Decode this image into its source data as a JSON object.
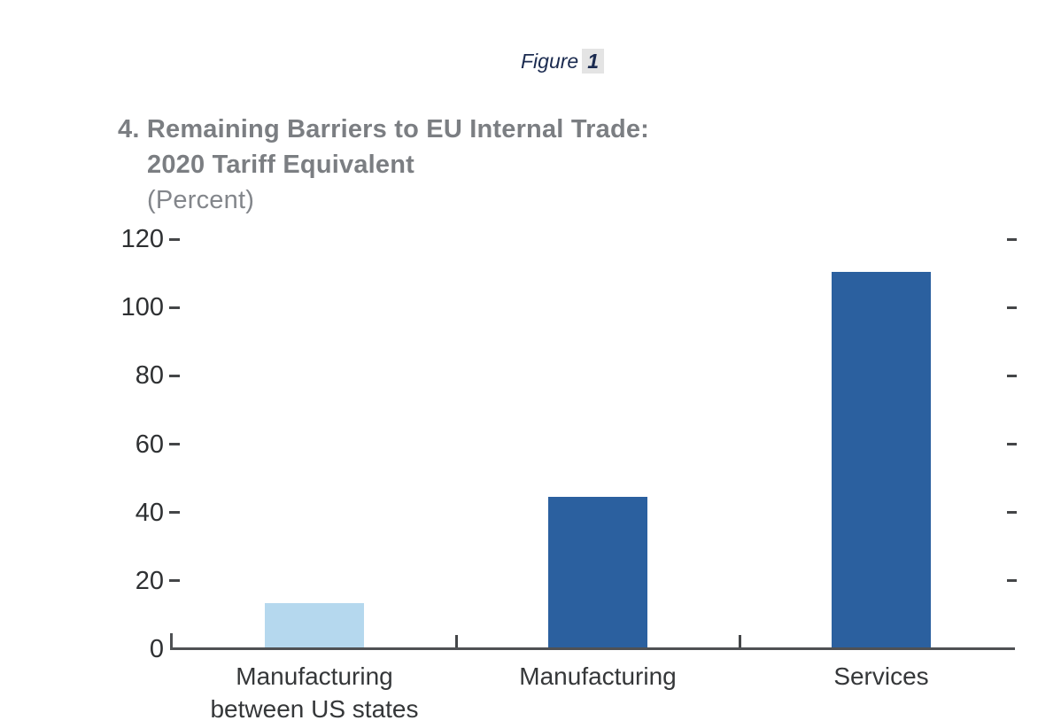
{
  "figure": {
    "prefix": "Figure",
    "number": "1"
  },
  "chart_data": {
    "type": "bar",
    "title_line1": "4. Remaining Barriers to EU Internal Trade:",
    "title_line2": "2020 Tariff Equivalent",
    "subtitle": "(Percent)",
    "categories": [
      "Manufacturing\nbetween US states",
      "Manufacturing",
      "Services"
    ],
    "values": [
      13,
      44,
      110
    ],
    "bar_colors": [
      "#b5d8ee",
      "#2b609f",
      "#2b609f"
    ],
    "ylim": [
      0,
      120
    ],
    "yticks": [
      0,
      20,
      40,
      60,
      80,
      100,
      120
    ],
    "grid": false,
    "legend": "none",
    "xlabel": "",
    "ylabel": "",
    "notes": "y-axis tick dashes shown on both left and right sides; short upward ticks on baseline separate categories"
  },
  "colors": {
    "bar_light_blue": "#b5d8ee",
    "bar_dark_blue": "#2b609f",
    "title_gray": "#7b7e82",
    "axis_text": "#2e3032",
    "axis_line": "#4f5154",
    "figure_heading_navy": "#1b2b50",
    "figure_number_highlight": "#e4e4e4",
    "background": "#ffffff"
  }
}
